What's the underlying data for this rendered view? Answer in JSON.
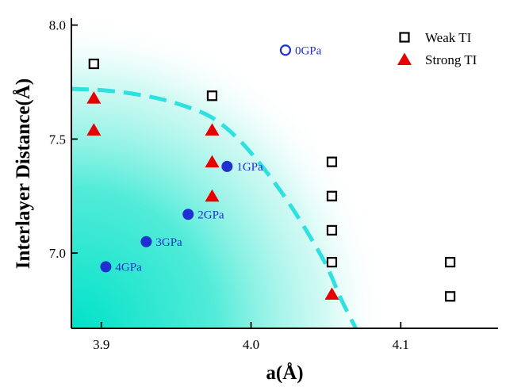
{
  "chart_data": {
    "type": "scatter",
    "xlabel": "a(Å)",
    "ylabel": "Interlayer Distance(Å)",
    "xlim": [
      3.88,
      4.165
    ],
    "ylim": [
      6.67,
      8.03
    ],
    "xticks": [
      {
        "value": 3.9,
        "label": "3.9"
      },
      {
        "value": 4.0,
        "label": "4.0"
      },
      {
        "value": 4.1,
        "label": "4.1"
      }
    ],
    "yticks": [
      {
        "value": 7.0,
        "label": "7.0"
      },
      {
        "value": 7.5,
        "label": "7.5"
      },
      {
        "value": 8.0,
        "label": "8.0"
      }
    ],
    "legend_position": "top-right",
    "series": [
      {
        "name": "Weak TI",
        "marker": "open-square",
        "color": "#000000",
        "points": [
          {
            "x": 3.895,
            "y": 7.83
          },
          {
            "x": 3.974,
            "y": 7.69
          },
          {
            "x": 4.054,
            "y": 7.4
          },
          {
            "x": 4.054,
            "y": 7.25
          },
          {
            "x": 4.054,
            "y": 7.1
          },
          {
            "x": 4.054,
            "y": 6.96
          },
          {
            "x": 4.133,
            "y": 6.96
          },
          {
            "x": 4.133,
            "y": 6.81
          }
        ]
      },
      {
        "name": "Strong TI",
        "marker": "filled-triangle",
        "color": "#e60000",
        "points": [
          {
            "x": 3.895,
            "y": 7.68
          },
          {
            "x": 3.895,
            "y": 7.54
          },
          {
            "x": 3.974,
            "y": 7.54
          },
          {
            "x": 3.974,
            "y": 7.4
          },
          {
            "x": 3.974,
            "y": 7.25
          },
          {
            "x": 4.054,
            "y": 6.82
          }
        ]
      },
      {
        "marker": "circle",
        "color": "#1f2fd0",
        "points": [
          {
            "x": 4.023,
            "y": 7.89,
            "label": "0GPa",
            "filled": false
          },
          {
            "x": 3.984,
            "y": 7.38,
            "label": "1GPa",
            "filled": true
          },
          {
            "x": 3.958,
            "y": 7.17,
            "label": "2GPa",
            "filled": true
          },
          {
            "x": 3.93,
            "y": 7.05,
            "label": "3GPa",
            "filled": true
          },
          {
            "x": 3.903,
            "y": 6.94,
            "label": "4GPa",
            "filled": true
          }
        ]
      }
    ],
    "boundary_curve": {
      "style": "dashed",
      "color": "#2ee0e0",
      "points": [
        {
          "x": 3.88,
          "y": 7.72
        },
        {
          "x": 3.9,
          "y": 7.715
        },
        {
          "x": 3.92,
          "y": 7.7
        },
        {
          "x": 3.94,
          "y": 7.675
        },
        {
          "x": 3.96,
          "y": 7.635
        },
        {
          "x": 3.975,
          "y": 7.59
        },
        {
          "x": 3.99,
          "y": 7.51
        },
        {
          "x": 4.005,
          "y": 7.4
        },
        {
          "x": 4.02,
          "y": 7.27
        },
        {
          "x": 4.035,
          "y": 7.12
        },
        {
          "x": 4.05,
          "y": 6.95
        },
        {
          "x": 4.06,
          "y": 6.8
        },
        {
          "x": 4.07,
          "y": 6.67
        }
      ]
    },
    "shaded_region": {
      "color": "#00e2c8"
    }
  }
}
